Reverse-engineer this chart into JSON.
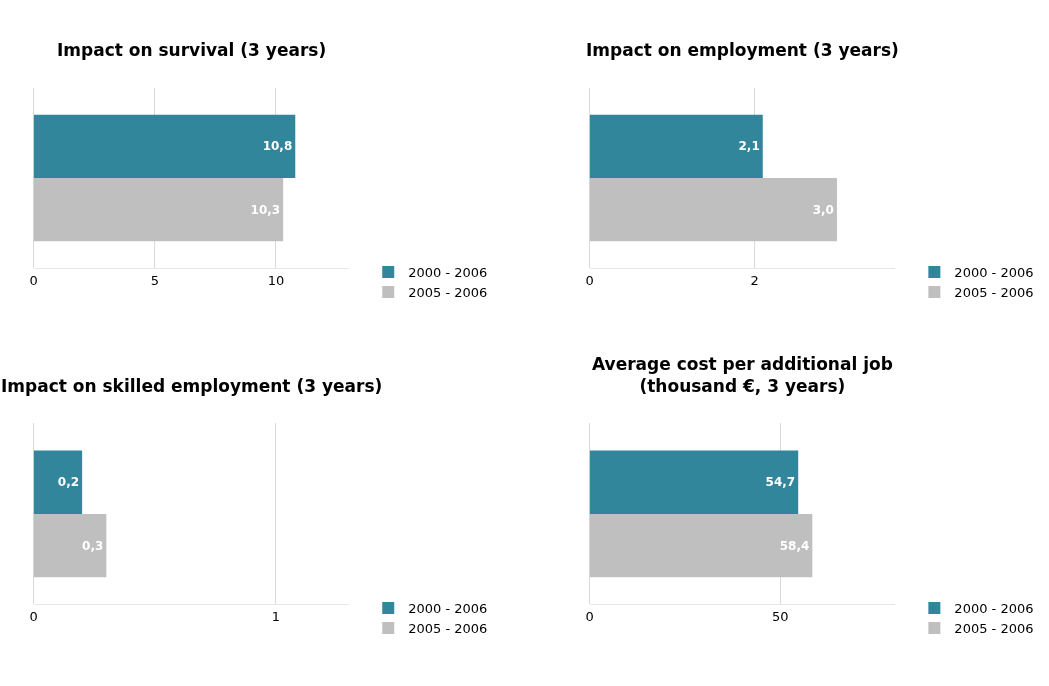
{
  "chart_data": [
    {
      "type": "bar",
      "orientation": "horizontal",
      "title": "Impact on survival (3 years)",
      "categories": [
        null
      ],
      "series": [
        {
          "name": "2000 - 2006",
          "color": "#31869b",
          "values": [
            10.8
          ],
          "value_labels": [
            "10,8"
          ]
        },
        {
          "name": "2005 - 2006",
          "color": "#bfbfbf",
          "values": [
            10.3
          ],
          "value_labels": [
            "10,3"
          ]
        }
      ],
      "xlim": [
        0,
        13
      ],
      "xticks": [
        0,
        5,
        10
      ],
      "grid": "x",
      "legend": "bottom right"
    },
    {
      "type": "bar",
      "orientation": "horizontal",
      "title": "Impact on employment (3 years)",
      "categories": [
        null
      ],
      "series": [
        {
          "name": "2000 - 2006",
          "color": "#31869b",
          "values": [
            2.1
          ],
          "value_labels": [
            "2,1"
          ]
        },
        {
          "name": "2005 - 2006",
          "color": "#bfbfbf",
          "values": [
            3.0
          ],
          "value_labels": [
            "3,0"
          ]
        }
      ],
      "xlim": [
        0,
        3.7
      ],
      "xticks": [
        0,
        2
      ],
      "grid": "x",
      "legend": "bottom right"
    },
    {
      "type": "bar",
      "orientation": "horizontal",
      "title": "Impact on skilled employment (3 years)",
      "categories": [
        null
      ],
      "series": [
        {
          "name": "2000 - 2006",
          "color": "#31869b",
          "values": [
            0.2
          ],
          "value_labels": [
            "0,2"
          ]
        },
        {
          "name": "2005 - 2006",
          "color": "#bfbfbf",
          "values": [
            0.3
          ],
          "value_labels": [
            "0,3"
          ]
        }
      ],
      "xlim": [
        0,
        1.3
      ],
      "xticks": [
        0,
        1
      ],
      "grid": "x",
      "legend": "bottom right"
    },
    {
      "type": "bar",
      "orientation": "horizontal",
      "title": "Average cost per additional job\n(thousand €, 3 years)",
      "categories": [
        null
      ],
      "series": [
        {
          "name": "2000 - 2006",
          "color": "#31869b",
          "values": [
            54.7
          ],
          "value_labels": [
            "54,7"
          ]
        },
        {
          "name": "2005 - 2006",
          "color": "#bfbfbf",
          "values": [
            58.4
          ],
          "value_labels": [
            "58,4"
          ]
        }
      ],
      "xlim": [
        0,
        80
      ],
      "xticks": [
        0,
        50
      ],
      "grid": "x",
      "legend": "bottom right"
    }
  ]
}
